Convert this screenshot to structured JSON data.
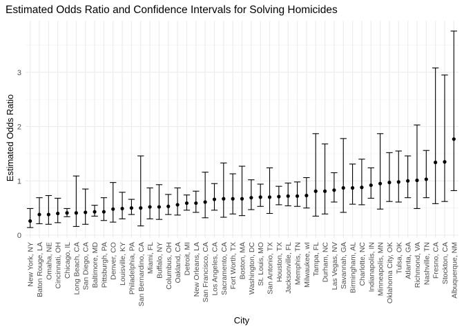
{
  "chart_data": {
    "type": "scatter",
    "title": "Estimated Odds Ratio and Confidence Intervals for Solving Homicides",
    "xlabel": "City",
    "ylabel": "Estimated Odds Ratio",
    "ylim": [
      0,
      3.9
    ],
    "yticks": [
      0,
      1,
      2,
      3
    ],
    "grid": true,
    "point_color": "#000000",
    "series": [
      {
        "categories": [
          "New York, NY",
          "Baton Rouge, LA",
          "Omaha, NE",
          "Cincinnati, OH",
          "Chicago, IL",
          "Long Beach, CA",
          "San Diego, CA",
          "Baltimore, MD",
          "Pittsburgh, PA",
          "Denver, CO",
          "Louisville, KY",
          "Philadelphia, PA",
          "San Bernardino, CA",
          "Miami, FL",
          "Buffalo, NY",
          "Columbus, OH",
          "Oakland, CA",
          "Detroit, MI",
          "New Orleans, LA",
          "San Francisco, CA",
          "Los Angeles, CA",
          "Sacramento, CA",
          "Fort Worth, TX",
          "Boston, MA",
          "Washington, DC",
          "St. Louis, MO",
          "San Antonio, TX",
          "Houston, TX",
          "Jacksonville, FL",
          "Memphis, TN",
          "Milwaukee, wI",
          "Tampa, FL",
          "Durham, NC",
          "Las Vegas, NV",
          "Savannah, GA",
          "Birmingham, AL",
          "Charlotte, NC",
          "Indianapolis, IN",
          "Minneapolis, MN",
          "Oklahoma City, OK",
          "Tulsa, OK",
          "Atlanta, GA",
          "Richmond, VA",
          "Nashville, TN",
          "Fresno, CA",
          "Stockton, CA",
          "Albuquerque, NM"
        ],
        "estimate": [
          0.26,
          0.38,
          0.38,
          0.4,
          0.41,
          0.41,
          0.42,
          0.43,
          0.43,
          0.48,
          0.49,
          0.5,
          0.5,
          0.52,
          0.52,
          0.53,
          0.56,
          0.59,
          0.59,
          0.61,
          0.66,
          0.67,
          0.67,
          0.67,
          0.69,
          0.7,
          0.7,
          0.71,
          0.72,
          0.72,
          0.73,
          0.81,
          0.81,
          0.83,
          0.87,
          0.87,
          0.88,
          0.92,
          0.95,
          0.97,
          0.98,
          1.0,
          1.01,
          1.03,
          1.34,
          1.35,
          1.77
        ],
        "ci_low": [
          0.14,
          0.21,
          0.2,
          0.23,
          0.34,
          0.16,
          0.2,
          0.35,
          0.27,
          0.24,
          0.3,
          0.38,
          0.17,
          0.3,
          0.29,
          0.38,
          0.37,
          0.46,
          0.42,
          0.32,
          0.46,
          0.33,
          0.39,
          0.36,
          0.47,
          0.53,
          0.4,
          0.56,
          0.54,
          0.53,
          0.5,
          0.35,
          0.39,
          0.61,
          0.42,
          0.57,
          0.56,
          0.68,
          0.48,
          0.62,
          0.61,
          0.69,
          0.49,
          0.69,
          0.58,
          0.62,
          0.82
        ],
        "ci_high": [
          0.49,
          0.69,
          0.73,
          0.68,
          0.49,
          1.09,
          0.85,
          0.55,
          0.69,
          0.97,
          0.79,
          0.66,
          1.46,
          0.87,
          0.93,
          0.75,
          0.87,
          0.74,
          0.81,
          1.16,
          0.95,
          1.33,
          1.13,
          1.27,
          1.02,
          0.94,
          1.24,
          0.9,
          0.96,
          0.98,
          1.06,
          1.87,
          1.68,
          1.15,
          1.78,
          1.31,
          1.4,
          1.24,
          1.87,
          1.52,
          1.55,
          1.46,
          2.03,
          1.56,
          3.08,
          2.95,
          3.76
        ]
      }
    ]
  }
}
